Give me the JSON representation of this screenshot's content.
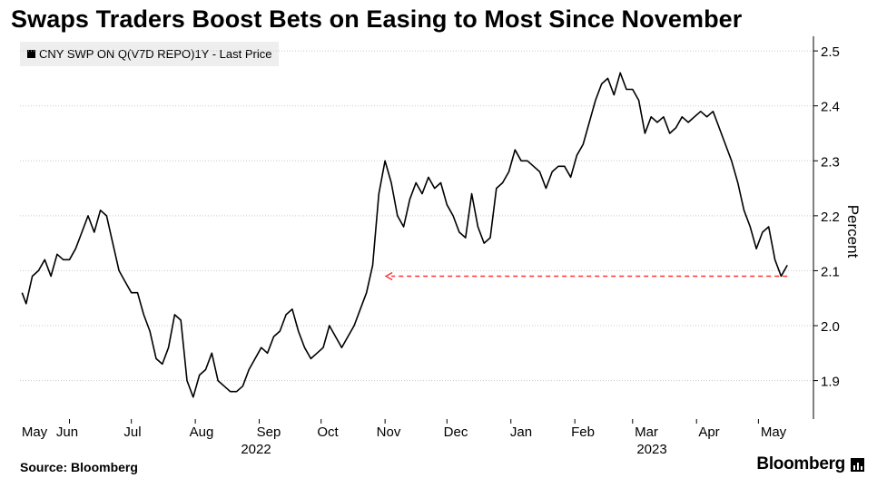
{
  "chart_data": {
    "type": "line",
    "title": "Swaps Traders Boost Bets on Easing to Most Since November",
    "ylabel": "Percent",
    "ylim": [
      1.83,
      2.52
    ],
    "yticks": [
      1.9,
      2.0,
      2.1,
      2.2,
      2.3,
      2.4,
      2.5
    ],
    "ytick_labels": [
      "1.9",
      "2.0",
      "2.1",
      "2.2",
      "2.3",
      "2.4",
      "2.5"
    ],
    "x_months": [
      "May",
      "Jun",
      "Jul",
      "Aug",
      "Sep",
      "Oct",
      "Nov",
      "Dec",
      "Jan",
      "Feb",
      "Mar",
      "Apr",
      "May"
    ],
    "x_years": [
      "2022",
      "2023"
    ],
    "grid": "horizontal dotted",
    "legend_position": "top-left",
    "series": [
      {
        "name": "CNY SWP ON Q(V7D REPO)1Y - Last Price",
        "color": "#000000",
        "x": [
          "2022-05-09",
          "2022-05-11",
          "2022-05-14",
          "2022-05-17",
          "2022-05-20",
          "2022-05-23",
          "2022-05-26",
          "2022-05-29",
          "2022-06-01",
          "2022-06-04",
          "2022-06-07",
          "2022-06-10",
          "2022-06-13",
          "2022-06-16",
          "2022-06-19",
          "2022-06-22",
          "2022-06-25",
          "2022-06-28",
          "2022-07-01",
          "2022-07-04",
          "2022-07-07",
          "2022-07-10",
          "2022-07-13",
          "2022-07-16",
          "2022-07-19",
          "2022-07-22",
          "2022-07-25",
          "2022-07-28",
          "2022-07-31",
          "2022-08-03",
          "2022-08-06",
          "2022-08-09",
          "2022-08-12",
          "2022-08-15",
          "2022-08-18",
          "2022-08-21",
          "2022-08-24",
          "2022-08-27",
          "2022-08-30",
          "2022-09-02",
          "2022-09-05",
          "2022-09-08",
          "2022-09-11",
          "2022-09-14",
          "2022-09-17",
          "2022-09-20",
          "2022-09-23",
          "2022-09-26",
          "2022-09-29",
          "2022-10-02",
          "2022-10-05",
          "2022-10-08",
          "2022-10-11",
          "2022-10-14",
          "2022-10-17",
          "2022-10-20",
          "2022-10-23",
          "2022-10-26",
          "2022-10-29",
          "2022-11-01",
          "2022-11-04",
          "2022-11-07",
          "2022-11-10",
          "2022-11-13",
          "2022-11-16",
          "2022-11-19",
          "2022-11-22",
          "2022-11-25",
          "2022-11-28",
          "2022-12-01",
          "2022-12-04",
          "2022-12-07",
          "2022-12-10",
          "2022-12-13",
          "2022-12-16",
          "2022-12-19",
          "2022-12-22",
          "2022-12-25",
          "2022-12-28",
          "2022-12-31",
          "2023-01-03",
          "2023-01-06",
          "2023-01-09",
          "2023-01-12",
          "2023-01-15",
          "2023-01-18",
          "2023-01-21",
          "2023-01-24",
          "2023-01-27",
          "2023-01-30",
          "2023-02-02",
          "2023-02-05",
          "2023-02-08",
          "2023-02-11",
          "2023-02-14",
          "2023-02-17",
          "2023-02-20",
          "2023-02-23",
          "2023-02-26",
          "2023-03-01",
          "2023-03-04",
          "2023-03-07",
          "2023-03-10",
          "2023-03-13",
          "2023-03-16",
          "2023-03-19",
          "2023-03-22",
          "2023-03-25",
          "2023-03-28",
          "2023-03-31",
          "2023-04-03",
          "2023-04-06",
          "2023-04-09",
          "2023-04-12",
          "2023-04-15",
          "2023-04-18",
          "2023-04-21",
          "2023-04-24",
          "2023-04-27",
          "2023-04-30",
          "2023-05-03",
          "2023-05-06",
          "2023-05-09",
          "2023-05-12",
          "2023-05-15"
        ],
        "values": [
          2.06,
          2.04,
          2.09,
          2.1,
          2.12,
          2.09,
          2.13,
          2.12,
          2.12,
          2.14,
          2.17,
          2.2,
          2.17,
          2.21,
          2.2,
          2.15,
          2.1,
          2.08,
          2.06,
          2.06,
          2.02,
          1.99,
          1.94,
          1.93,
          1.96,
          2.02,
          2.01,
          1.9,
          1.87,
          1.91,
          1.92,
          1.95,
          1.9,
          1.89,
          1.88,
          1.88,
          1.89,
          1.92,
          1.94,
          1.96,
          1.95,
          1.98,
          1.99,
          2.02,
          2.03,
          1.99,
          1.96,
          1.94,
          1.95,
          1.96,
          2.0,
          1.98,
          1.96,
          1.98,
          2.0,
          2.03,
          2.06,
          2.11,
          2.24,
          2.3,
          2.26,
          2.2,
          2.18,
          2.23,
          2.26,
          2.24,
          2.27,
          2.25,
          2.26,
          2.22,
          2.2,
          2.17,
          2.16,
          2.24,
          2.18,
          2.15,
          2.16,
          2.25,
          2.26,
          2.28,
          2.32,
          2.3,
          2.3,
          2.29,
          2.28,
          2.25,
          2.28,
          2.29,
          2.29,
          2.27,
          2.31,
          2.33,
          2.37,
          2.41,
          2.44,
          2.45,
          2.42,
          2.46,
          2.43,
          2.43,
          2.41,
          2.35,
          2.38,
          2.37,
          2.38,
          2.35,
          2.36,
          2.38,
          2.37,
          2.38,
          2.39,
          2.38,
          2.39,
          2.36,
          2.33,
          2.3,
          2.26,
          2.21,
          2.18,
          2.14,
          2.17,
          2.18,
          2.12,
          2.09,
          2.11
        ]
      }
    ],
    "annotation": {
      "style": "dashed red arrow",
      "color": "#ff3333",
      "value": 2.09,
      "from_date": "2023-05-15",
      "to_date": "2022-11-01"
    }
  },
  "footer": {
    "source": "Source: Bloomberg",
    "brand": "Bloomberg"
  }
}
